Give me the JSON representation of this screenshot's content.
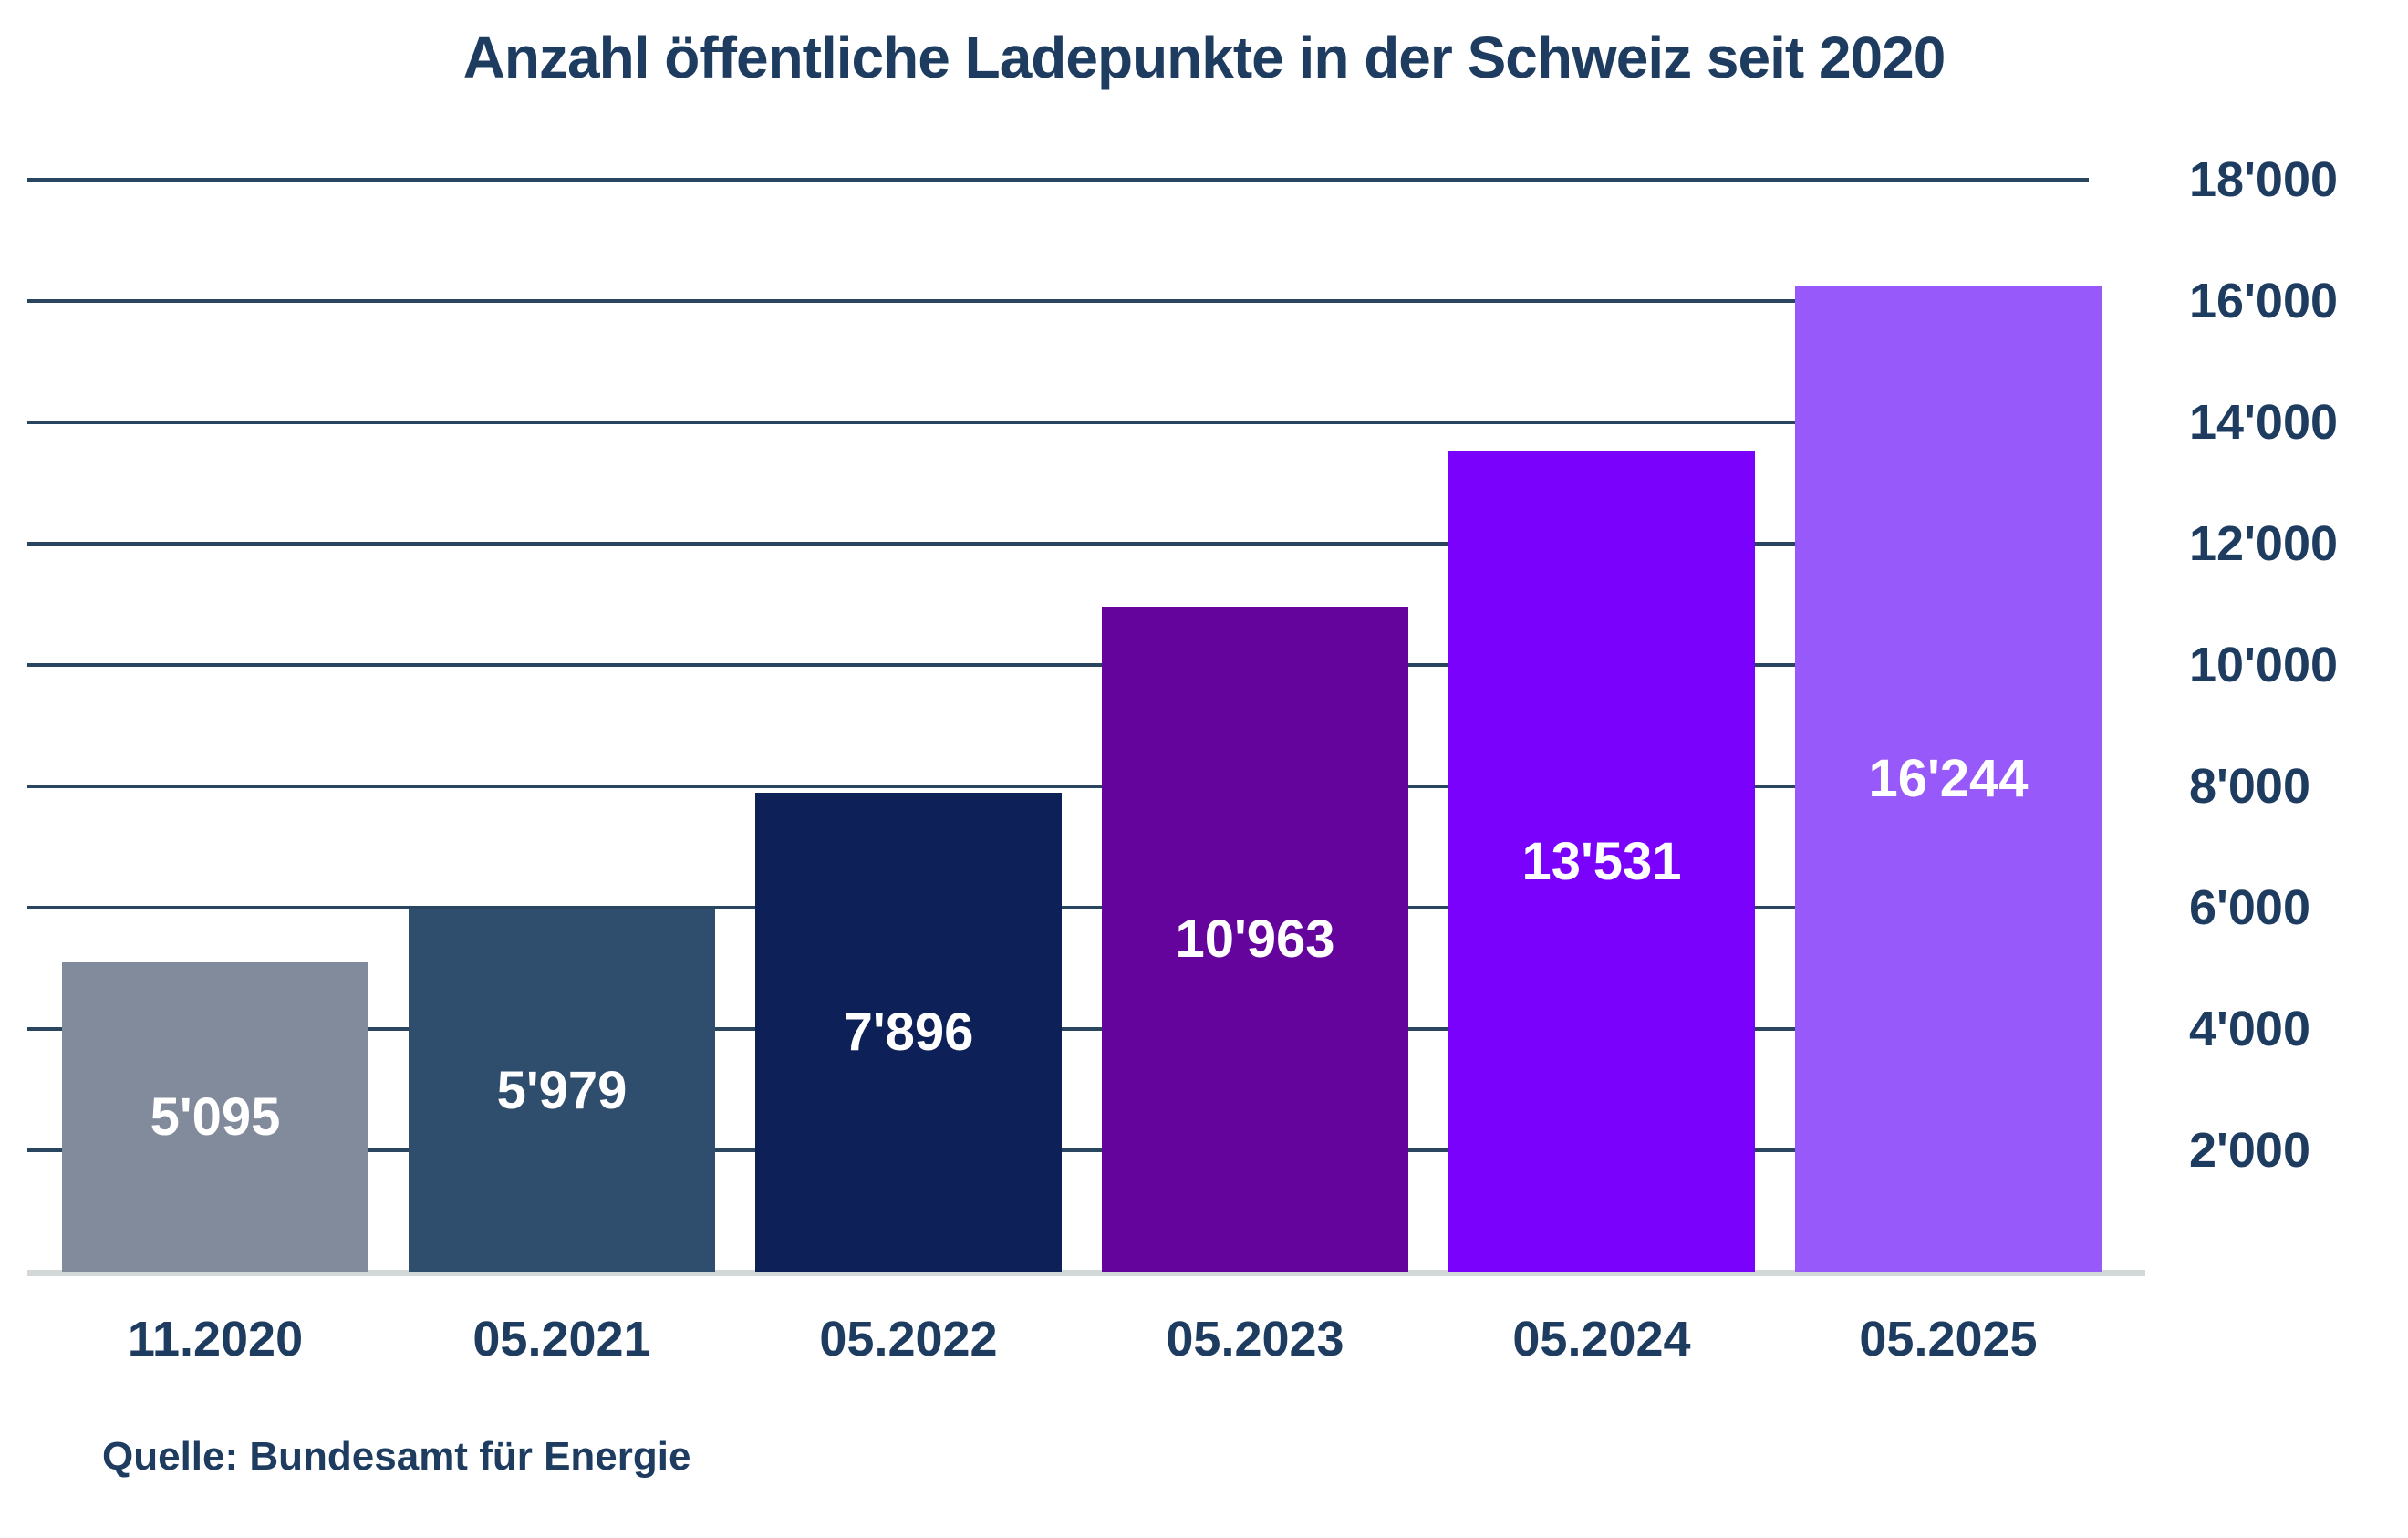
{
  "chart_data": {
    "type": "bar",
    "title": "Anzahl öffentliche Ladepunkte in der Schweiz seit 2020",
    "source": "Quelle: Bundesamt für Energie",
    "categories": [
      "11.2020",
      "05.2021",
      "05.2022",
      "05.2023",
      "05.2024",
      "05.2025"
    ],
    "values": [
      5095,
      5979,
      7896,
      10963,
      13531,
      16244
    ],
    "value_labels": [
      "5'095",
      "5'979",
      "7'896",
      "10'963",
      "13'531",
      "16'244"
    ],
    "bar_colors": [
      "#828b9c",
      "#2f4d6c",
      "#0d2158",
      "#65049d",
      "#7a01fb",
      "#9859fa"
    ],
    "y_tick_values": [
      2000,
      4000,
      6000,
      8000,
      10000,
      12000,
      14000,
      16000,
      18000
    ],
    "y_tick_labels": [
      "2'000",
      "4'000",
      "6'000",
      "8'000",
      "10'000",
      "12'000",
      "14'000",
      "16'000",
      "18'000"
    ],
    "ylim": [
      0,
      18000
    ],
    "y_tick_interval": 2000,
    "y_axis_side": "right",
    "grid": true,
    "legend": "none",
    "value_label_position": "inside-center",
    "xlabel": "",
    "ylabel": "",
    "colors": {
      "bg": "#ffffff",
      "text": "#1e3c60",
      "gridline": "#2a4560",
      "baseline": "#d2d8d8",
      "value": "#ffffff"
    }
  }
}
